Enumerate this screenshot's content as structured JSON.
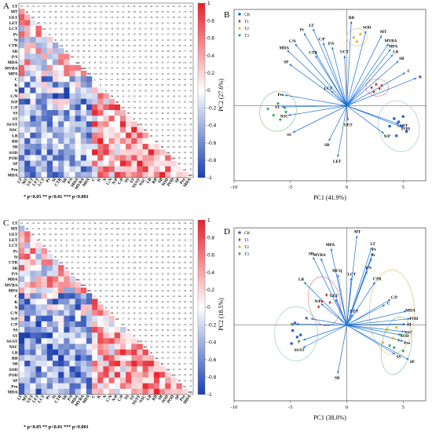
{
  "figure": {
    "signif_note": "* p<0.05 ** p<0.01 *** p<0.001"
  },
  "colors": {
    "positive": "#e8202a",
    "negative": "#1a3fb0",
    "neutral": "#ffffff",
    "arrow": "#1a6fd6",
    "ellipse_CK": "#9ad0c8",
    "ellipse_T1": "#e58a8a",
    "ellipse_T2": "#d9c67a",
    "ellipse_T3": "#8bc79a"
  },
  "chart_data": [
    {
      "panel": "A",
      "type": "heatmap",
      "variables": [
        "LT",
        "MT",
        "UET",
        "LET",
        "LCT",
        "Pr",
        "St",
        "CTR",
        "SR",
        "P/S",
        "MDA",
        "MVBA",
        "MPA",
        "C",
        "K",
        "N",
        "C/N",
        "N/P",
        "C/P",
        "SS",
        "ST",
        "SS/ST",
        "NSC",
        "LB",
        "RB",
        "SB",
        "SOD",
        "POD",
        "SP",
        "Pro",
        "MDA"
      ],
      "colorbar": {
        "min": -1,
        "max": 1,
        "ticks": [
          1,
          0.8,
          0.6,
          0.4,
          0.2,
          0,
          -0.2,
          -0.4,
          -0.6,
          -0.8,
          -1
        ]
      }
    },
    {
      "panel": "B",
      "type": "scatter",
      "xlabel": "PC1 (41.9%)",
      "ylabel": "PC2 (27.6%)",
      "xlim": [
        -10,
        7
      ],
      "ylim": [
        -7,
        9
      ],
      "xticks": [
        -10,
        -5,
        0,
        5
      ],
      "legend": [
        "CK",
        "T1",
        "T2",
        "T3"
      ],
      "legend_colors": [
        "#2a63c9",
        "#d62b2b",
        "#e0a800",
        "#1b9a50"
      ],
      "groups": [
        {
          "name": "CK",
          "points": [
            [
              4.2,
              -1.2
            ],
            [
              4.6,
              -1.5
            ],
            [
              4.9,
              -1.9
            ],
            [
              5.3,
              -2.4
            ],
            [
              3.8,
              -1.9
            ],
            [
              4.4,
              -2.8
            ],
            [
              5.0,
              -1.0
            ]
          ]
        },
        {
          "name": "T1",
          "points": [
            [
              2.2,
              1.7
            ],
            [
              2.6,
              2.0
            ],
            [
              2.9,
              1.6
            ],
            [
              2.4,
              1.3
            ],
            [
              3.1,
              1.9
            ]
          ]
        },
        {
          "name": "T2",
          "points": [
            [
              0.6,
              6.4
            ],
            [
              0.9,
              6.0
            ],
            [
              1.2,
              6.7
            ]
          ]
        },
        {
          "name": "T3",
          "points": [
            [
              -7.0,
              -0.3
            ],
            [
              -6.5,
              -0.9
            ],
            [
              -5.9,
              -1.3
            ],
            [
              -5.5,
              -0.2
            ],
            [
              -6.1,
              0.2
            ],
            [
              -5.4,
              -0.6
            ]
          ]
        }
      ],
      "ellipses": [
        {
          "group": "CK",
          "cx": 4.6,
          "cy": -1.9,
          "rx": 1.8,
          "ry": 2.4,
          "angle": 15
        },
        {
          "group": "T1",
          "cx": 2.7,
          "cy": 1.7,
          "rx": 1.0,
          "ry": 0.8,
          "angle": 0
        },
        {
          "group": "T2",
          "cx": 0.9,
          "cy": 6.4,
          "rx": 0.9,
          "ry": 0.8,
          "angle": 0
        },
        {
          "group": "T3",
          "cx": -6.1,
          "cy": -0.5,
          "rx": 1.6,
          "ry": 1.9,
          "angle": -20
        }
      ],
      "loadings": [
        {
          "label": "RB",
          "x": 0.4,
          "y": 7.9
        },
        {
          "label": "SOD",
          "x": 1.7,
          "y": 7.0
        },
        {
          "label": "MT",
          "x": 3.1,
          "y": 6.6
        },
        {
          "label": "MVBA",
          "x": 3.7,
          "y": 5.8
        },
        {
          "label": "MPA",
          "x": 3.9,
          "y": 5.3
        },
        {
          "label": "LB",
          "x": 4.1,
          "y": 4.8
        },
        {
          "label": "SB",
          "x": 4.6,
          "y": 4.2
        },
        {
          "label": "K",
          "x": 6.2,
          "y": 2.6
        },
        {
          "label": "C",
          "x": 5.2,
          "y": 3.1
        },
        {
          "label": "LT",
          "x": -3.0,
          "y": 7.2
        },
        {
          "label": "Pr",
          "x": -3.8,
          "y": 6.8
        },
        {
          "label": "C/N",
          "x": -4.6,
          "y": 5.8
        },
        {
          "label": "C/P",
          "x": -2.1,
          "y": 5.9
        },
        {
          "label": "P/S",
          "x": -1.3,
          "y": 5.5
        },
        {
          "label": "MDA",
          "x": -5.3,
          "y": 5.2
        },
        {
          "label": "CTR",
          "x": -2.8,
          "y": 4.7
        },
        {
          "label": "UCT",
          "x": -0.2,
          "y": 4.7
        },
        {
          "label": "SP",
          "x": -5.1,
          "y": 3.9
        },
        {
          "label": "Pro",
          "x": -5.5,
          "y": 1.0
        },
        {
          "label": "ST",
          "x": -5.8,
          "y": -0.1
        },
        {
          "label": "NSC",
          "x": -5.2,
          "y": -0.9
        },
        {
          "label": "SS",
          "x": -4.8,
          "y": -2.5
        },
        {
          "label": "LCT",
          "x": -1.4,
          "y": 1.4
        },
        {
          "label": "UET",
          "x": 0.1,
          "y": -1.4
        },
        {
          "label": "SR",
          "x": -1.6,
          "y": -3.3
        },
        {
          "label": "LET",
          "x": -0.8,
          "y": -4.8
        },
        {
          "label": "SS/ST",
          "x": 4.6,
          "y": -1.7
        },
        {
          "label": "POD",
          "x": 4.9,
          "y": -2.0
        },
        {
          "label": "N/P",
          "x": 3.3,
          "y": -2.6
        }
      ]
    },
    {
      "panel": "C",
      "type": "heatmap",
      "variables": [
        "LT",
        "MT",
        "UET",
        "LET",
        "LCT",
        "Pr",
        "St",
        "CTR",
        "SR",
        "P/S",
        "MDA",
        "MVBA",
        "MPA",
        "C",
        "K",
        "N",
        "C/N",
        "N/P",
        "C/P",
        "SS",
        "ST",
        "SS/ST",
        "NSC",
        "LB",
        "RB",
        "SB",
        "SOD",
        "POD",
        "SP",
        "Pro",
        "MDA"
      ],
      "colorbar": {
        "min": -1,
        "max": 1,
        "ticks": [
          1,
          0.8,
          0.6,
          0.4,
          0.2,
          0,
          -0.2,
          -0.4,
          -0.6,
          -0.8,
          -1
        ]
      }
    },
    {
      "panel": "D",
      "type": "scatter",
      "xlabel": "PC1 (38.0%)",
      "ylabel": "PC2 (18.5%)",
      "xlim": [
        -10,
        7
      ],
      "ylim": [
        -7,
        9
      ],
      "xticks": [
        -10,
        -5,
        0,
        5
      ],
      "legend": [
        "CK",
        "T1",
        "T2",
        "T3"
      ],
      "legend_colors": [
        "#2a63c9",
        "#d62b2b",
        "#e0a800",
        "#1b9a50"
      ],
      "groups": [
        {
          "name": "CK",
          "points": [
            [
              -4.8,
              -0.5
            ],
            [
              -4.4,
              -1.1
            ],
            [
              -4.9,
              -1.7
            ],
            [
              -4.1,
              -0.9
            ],
            [
              -4.6,
              0.2
            ]
          ]
        },
        {
          "name": "T1",
          "points": [
            [
              -2.2,
              2.2
            ],
            [
              -1.8,
              2.8
            ],
            [
              -2.5,
              1.7
            ],
            [
              -1.5,
              2.1
            ]
          ]
        },
        {
          "name": "T2",
          "points": [
            [
              3.6,
              -0.4
            ],
            [
              4.1,
              -1.2
            ],
            [
              3.2,
              -1.6
            ],
            [
              4.4,
              -0.2
            ]
          ]
        },
        {
          "name": "T3",
          "points": [
            [
              4.6,
              -1.4
            ],
            [
              4.2,
              -2.1
            ],
            [
              5.0,
              -2.4
            ],
            [
              3.8,
              -1.9
            ],
            [
              4.8,
              -0.9
            ]
          ]
        }
      ],
      "ellipses": [
        {
          "group": "CK",
          "cx": -4.5,
          "cy": -0.8,
          "rx": 1.9,
          "ry": 2.5,
          "angle": 0
        },
        {
          "group": "T1",
          "cx": -2.0,
          "cy": 2.2,
          "rx": 1.4,
          "ry": 2.3,
          "angle": 10
        },
        {
          "group": "T2",
          "cx": 4.0,
          "cy": 1.2,
          "rx": 2.0,
          "ry": 3.9,
          "angle": 0
        },
        {
          "group": "T3",
          "cx": 4.4,
          "cy": -1.9,
          "rx": 1.3,
          "ry": 2.7,
          "angle": -10
        }
      ],
      "loadings": [
        {
          "label": "MT",
          "x": 0.9,
          "y": 8.3
        },
        {
          "label": "LT",
          "x": 2.2,
          "y": 7.2
        },
        {
          "label": "Pr",
          "x": 2.3,
          "y": 6.7
        },
        {
          "label": "St",
          "x": 2.2,
          "y": 6.2
        },
        {
          "label": "MPA",
          "x": -1.4,
          "y": 7.1
        },
        {
          "label": "SR",
          "x": -3.0,
          "y": 6.3
        },
        {
          "label": "MVBA",
          "x": -2.3,
          "y": 6.2
        },
        {
          "label": "P/S",
          "x": 1.8,
          "y": 5.0
        },
        {
          "label": "LCT",
          "x": 0.4,
          "y": 4.4
        },
        {
          "label": "MCQ",
          "x": -0.8,
          "y": 4.7
        },
        {
          "label": "CTR",
          "x": 2.5,
          "y": 4.0
        },
        {
          "label": "LB",
          "x": -3.8,
          "y": 4.0
        },
        {
          "label": "C/P",
          "x": 3.9,
          "y": 2.4
        },
        {
          "label": "C",
          "x": 3.4,
          "y": 1.9
        },
        {
          "label": "MDA",
          "x": 5.3,
          "y": 1.3
        },
        {
          "label": "POD",
          "x": 5.6,
          "y": 0.6
        },
        {
          "label": "ST",
          "x": 5.2,
          "y": 0.1
        },
        {
          "label": "SOD",
          "x": 4.8,
          "y": -0.9
        },
        {
          "label": "NSC",
          "x": 5.1,
          "y": -0.6
        },
        {
          "label": "Pro",
          "x": 5.0,
          "y": -1.5
        },
        {
          "label": "SS",
          "x": 4.3,
          "y": -2.7
        },
        {
          "label": "SP",
          "x": 5.5,
          "y": -3.2
        },
        {
          "label": "N/P",
          "x": -2.3,
          "y": 2.0
        },
        {
          "label": "UET",
          "x": -1.0,
          "y": 2.4
        },
        {
          "label": "K",
          "x": -3.2,
          "y": 0.6
        },
        {
          "label": "N",
          "x": -4.5,
          "y": 0.1
        },
        {
          "label": "P",
          "x": -3.9,
          "y": -1.4
        },
        {
          "label": "SS/ST",
          "x": -3.9,
          "y": -2.1
        },
        {
          "label": "SB",
          "x": -0.8,
          "y": -4.5
        },
        {
          "label": "LET",
          "x": 0.5,
          "y": 1.0
        }
      ]
    }
  ]
}
